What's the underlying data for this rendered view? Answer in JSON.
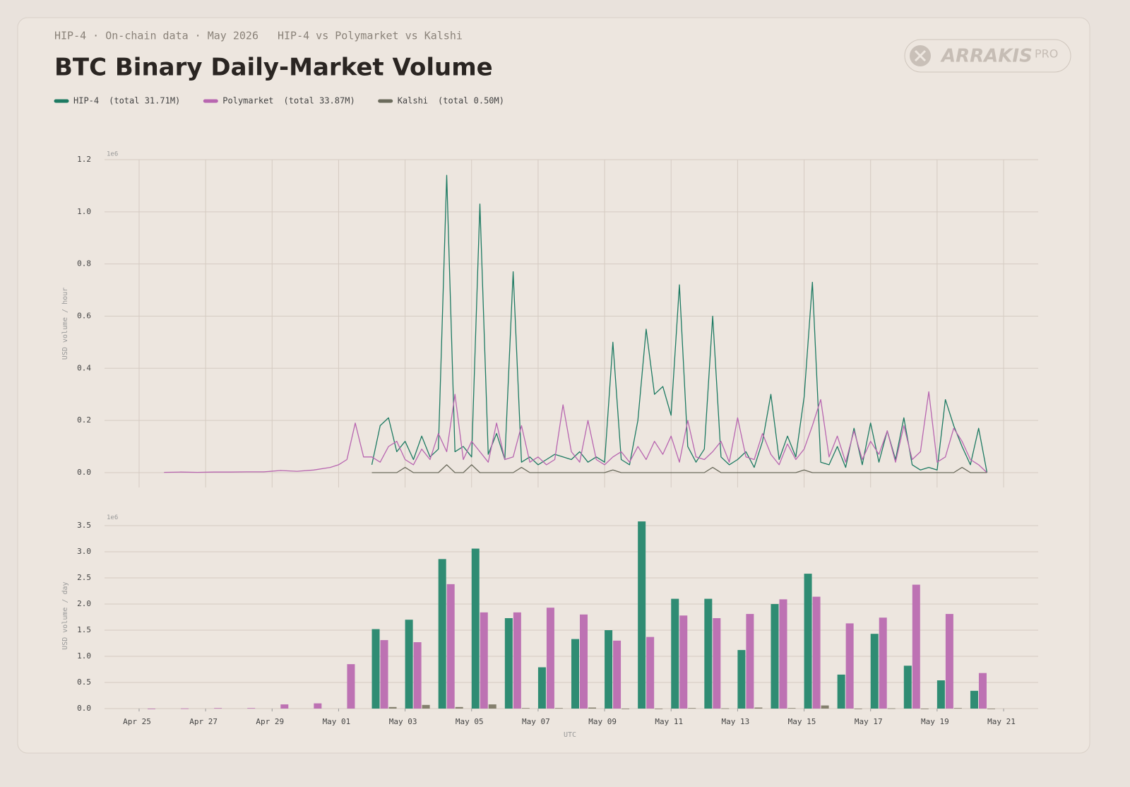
{
  "header": {
    "kicker": "HIP-4 · On-chain data · May 2026",
    "subtitle": "HIP-4 vs Polymarket vs Kalshi",
    "title": "BTC Binary Daily-Market Volume"
  },
  "logo": {
    "name": "ARRAKIS",
    "tag": "PRO"
  },
  "chart_data": [
    {
      "type": "line",
      "y_label": "USD volume / hour",
      "offset_label": "1e6",
      "grid": true,
      "xlim": [
        -1.04,
        27.04
      ],
      "ylim": [
        -0.057,
        1.2
      ],
      "xticks": [
        0,
        2,
        4,
        6,
        8,
        10,
        12,
        14,
        16,
        18,
        20,
        22,
        24,
        26
      ],
      "yticks": [
        {
          "value": 0,
          "label": "0.0"
        },
        0.2,
        0.4,
        0.6,
        0.8,
        {
          "value": 1,
          "label": "1.0"
        },
        1.2
      ],
      "x": [
        0.75,
        1.25,
        1.75,
        2.25,
        2.75,
        3.25,
        3.75,
        4.25,
        4.75,
        5.25,
        5.75,
        6.0,
        6.25,
        6.5,
        6.75,
        7.0,
        7.25,
        7.5,
        7.75,
        8.0,
        8.25,
        8.5,
        8.75,
        9.0,
        9.25,
        9.5,
        9.75,
        10.0,
        10.25,
        10.5,
        10.75,
        11.0,
        11.25,
        11.5,
        11.75,
        12.0,
        12.25,
        12.5,
        12.75,
        13.0,
        13.25,
        13.5,
        13.75,
        14.0,
        14.25,
        14.5,
        14.75,
        15.0,
        15.25,
        15.5,
        15.75,
        16.0,
        16.25,
        16.5,
        16.75,
        17.0,
        17.25,
        17.5,
        17.75,
        18.0,
        18.25,
        18.5,
        18.75,
        19.0,
        19.25,
        19.5,
        19.75,
        20.0,
        20.25,
        20.5,
        20.75,
        21.0,
        21.25,
        21.5,
        21.75,
        22.0,
        22.25,
        22.5,
        22.75,
        23.0,
        23.25,
        23.5,
        23.75,
        24.0,
        24.25,
        24.5,
        24.75,
        25.0,
        25.25,
        25.5
      ],
      "series": [
        {
          "name": "HIP-4",
          "total": "(total 31.71M)",
          "color": "#1d7a62",
          "values": [
            null,
            null,
            null,
            null,
            null,
            null,
            null,
            null,
            null,
            null,
            null,
            null,
            null,
            null,
            null,
            0.03,
            0.18,
            0.21,
            0.08,
            0.12,
            0.05,
            0.14,
            0.06,
            0.09,
            1.14,
            0.08,
            0.1,
            0.06,
            1.03,
            0.07,
            0.15,
            0.05,
            0.77,
            0.04,
            0.06,
            0.03,
            0.05,
            0.07,
            0.06,
            0.05,
            0.08,
            0.04,
            0.06,
            0.04,
            0.5,
            0.05,
            0.03,
            0.2,
            0.55,
            0.3,
            0.33,
            0.22,
            0.72,
            0.1,
            0.04,
            0.09,
            0.6,
            0.06,
            0.03,
            0.05,
            0.08,
            0.02,
            0.12,
            0.3,
            0.05,
            0.14,
            0.06,
            0.29,
            0.73,
            0.04,
            0.03,
            0.1,
            0.02,
            0.17,
            0.03,
            0.19,
            0.04,
            0.16,
            0.05,
            0.21,
            0.03,
            0.01,
            0.02,
            0.01,
            0.28,
            0.18,
            0.1,
            0.03,
            0.17,
            0
          ]
        },
        {
          "name": "Polymarket",
          "total": "(total 33.87M)",
          "color": "#b866b0",
          "values": [
            0.001,
            0.002,
            0.001,
            0.002,
            0.002,
            0.003,
            0.003,
            0.008,
            0.005,
            0.01,
            0.02,
            0.03,
            0.05,
            0.19,
            0.06,
            0.06,
            0.04,
            0.1,
            0.12,
            0.05,
            0.03,
            0.09,
            0.05,
            0.15,
            0.08,
            0.3,
            0.05,
            0.12,
            0.08,
            0.04,
            0.19,
            0.05,
            0.06,
            0.18,
            0.04,
            0.06,
            0.03,
            0.05,
            0.26,
            0.08,
            0.04,
            0.2,
            0.05,
            0.03,
            0.06,
            0.08,
            0.04,
            0.1,
            0.05,
            0.12,
            0.07,
            0.14,
            0.04,
            0.2,
            0.06,
            0.05,
            0.08,
            0.12,
            0.04,
            0.21,
            0.06,
            0.05,
            0.15,
            0.07,
            0.03,
            0.11,
            0.05,
            0.09,
            0.18,
            0.28,
            0.06,
            0.14,
            0.04,
            0.16,
            0.05,
            0.12,
            0.07,
            0.16,
            0.04,
            0.18,
            0.05,
            0.08,
            0.31,
            0.04,
            0.06,
            0.17,
            0.12,
            0.05,
            0.03,
            0
          ]
        },
        {
          "name": "Kalshi",
          "total": "(total 0.50M)",
          "color": "#6b6b5c",
          "values": [
            null,
            null,
            null,
            null,
            null,
            null,
            null,
            null,
            null,
            null,
            null,
            null,
            null,
            null,
            null,
            0,
            0,
            0,
            0,
            0.02,
            0,
            0,
            0,
            0,
            0.03,
            0,
            0,
            0.03,
            0,
            0,
            0,
            0,
            0,
            0.02,
            0,
            0,
            0,
            0,
            0,
            0,
            0,
            0,
            0,
            0,
            0.01,
            0,
            0,
            0,
            0,
            0,
            0,
            0,
            0,
            0,
            0,
            0,
            0.02,
            0,
            0,
            0,
            0,
            0,
            0,
            0,
            0,
            0,
            0,
            0.01,
            0,
            0,
            0,
            0,
            0,
            0,
            0,
            0,
            0,
            0,
            0,
            0,
            0,
            0,
            0,
            0,
            0,
            0,
            0.02,
            0,
            0,
            0
          ]
        }
      ]
    },
    {
      "type": "bar",
      "y_label": "USD volume / day",
      "x_label": "UTC",
      "offset_label": "1e6",
      "grid": true,
      "xlim": [
        -1.04,
        27.04
      ],
      "ylim": [
        0,
        3.55
      ],
      "xticks": [
        {
          "value": 0,
          "label": "Apr 25"
        },
        {
          "value": 2,
          "label": "Apr 27"
        },
        {
          "value": 4,
          "label": "Apr 29"
        },
        {
          "value": 6,
          "label": "May 01"
        },
        {
          "value": 8,
          "label": "May 03"
        },
        {
          "value": 10,
          "label": "May 05"
        },
        {
          "value": 12,
          "label": "May 07"
        },
        {
          "value": 14,
          "label": "May 09"
        },
        {
          "value": 16,
          "label": "May 11"
        },
        {
          "value": 18,
          "label": "May 13"
        },
        {
          "value": 20,
          "label": "May 15"
        },
        {
          "value": 22,
          "label": "May 17"
        },
        {
          "value": 24,
          "label": "May 19"
        },
        {
          "value": 26,
          "label": "May 21"
        }
      ],
      "yticks": [
        {
          "value": 0,
          "label": "0.0"
        },
        0.5,
        {
          "value": 1,
          "label": "1.0"
        },
        1.5,
        {
          "value": 2,
          "label": "2.0"
        },
        2.5,
        {
          "value": 3,
          "label": "3.0"
        },
        3.5
      ],
      "x": [
        0,
        1,
        2,
        3,
        4,
        5,
        6,
        7,
        8,
        9,
        10,
        11,
        12,
        13,
        14,
        15,
        16,
        17,
        18,
        19,
        20,
        21,
        22,
        23,
        24,
        25
      ],
      "series": [
        {
          "color": "#2f8c73",
          "values": [
            null,
            null,
            null,
            null,
            null,
            null,
            null,
            1.52,
            1.7,
            2.86,
            3.06,
            1.73,
            0.79,
            1.33,
            1.5,
            3.58,
            2.1,
            2.1,
            1.12,
            2.0,
            2.58,
            0.65,
            1.43,
            0.82,
            0.54,
            0.34
          ]
        },
        {
          "color": "#bd72b3",
          "values": [
            0,
            0.003,
            0.01,
            0.01,
            0.08,
            0.1,
            0.85,
            1.31,
            1.27,
            2.38,
            1.84,
            1.84,
            1.93,
            1.8,
            1.3,
            1.37,
            1.78,
            1.73,
            1.81,
            2.09,
            2.14,
            1.63,
            1.74,
            2.37,
            1.81,
            0.68
          ]
        },
        {
          "color": "#85806e",
          "values": [
            null,
            null,
            null,
            null,
            null,
            null,
            null,
            0.03,
            0.07,
            0.03,
            0.08,
            0.01,
            0.01,
            0.02,
            0,
            0,
            0.01,
            0.005,
            0.02,
            0.01,
            0.06,
            0,
            0.005,
            0,
            0.01,
            0
          ]
        }
      ]
    }
  ]
}
